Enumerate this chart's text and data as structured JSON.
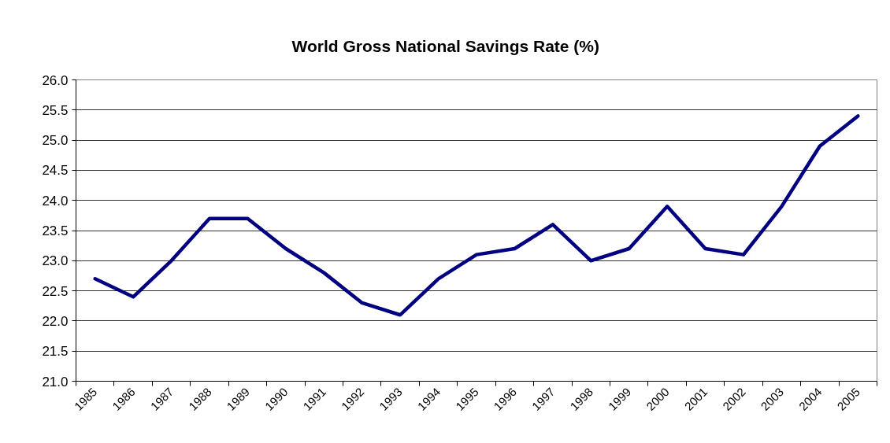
{
  "chart_data": {
    "type": "line",
    "title": "World Gross National Savings Rate (%)",
    "categories": [
      "1985",
      "1986",
      "1987",
      "1988",
      "1989",
      "1990",
      "1991",
      "1992",
      "1993",
      "1994",
      "1995",
      "1996",
      "1997",
      "1998",
      "1999",
      "2000",
      "2001",
      "2002",
      "2003",
      "2004",
      "2005"
    ],
    "series": [
      {
        "color": "#000080",
        "values": [
          22.7,
          22.4,
          23.0,
          23.7,
          23.7,
          23.2,
          22.8,
          22.3,
          22.1,
          22.7,
          23.1,
          23.2,
          23.6,
          23.0,
          23.2,
          23.9,
          23.2,
          23.1,
          23.9,
          24.9,
          25.4
        ]
      }
    ],
    "ylim": [
      21,
      26
    ],
    "yticks": [
      {
        "value": 21,
        "label": "21.0"
      },
      21.5,
      {
        "value": 22,
        "label": "22.0"
      },
      22.5,
      {
        "value": 23,
        "label": "23.0"
      },
      23.5,
      {
        "value": 24,
        "label": "24.0"
      },
      24.5,
      {
        "value": 25,
        "label": "25.0"
      },
      25.5,
      {
        "value": 26,
        "label": "26.0"
      }
    ],
    "grid": "y"
  }
}
